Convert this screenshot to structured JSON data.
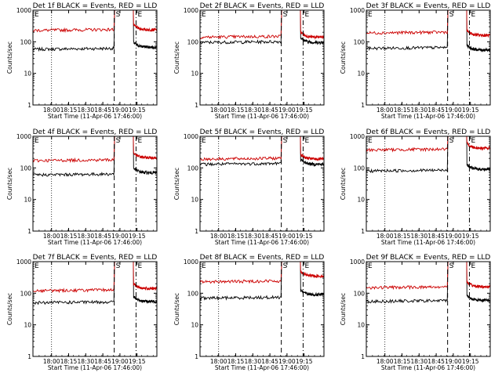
{
  "chart_data": [
    {
      "type": "line",
      "title": "Det 1f BLACK = Events, RED = LLD",
      "xlabel": "Start Time (11-Apr-06 17:46:00)",
      "ylabel": "Counts/sec",
      "yscale": "log",
      "ylim": [
        1,
        1000
      ],
      "yticks": [
        "1",
        "10",
        "100",
        "1000"
      ],
      "xticks": [
        "18:00",
        "18:15",
        "18:30",
        "18:45",
        "19:00",
        "19:15"
      ],
      "markers": {
        "start": "S",
        "end": "E"
      },
      "series": [
        {
          "name": "Events",
          "color": "#000000",
          "base": 58,
          "after": 68
        },
        {
          "name": "LLD",
          "color": "#cc0000",
          "base": 230,
          "after": 240
        }
      ]
    },
    {
      "type": "line",
      "title": "Det 2f BLACK = Events, RED = LLD",
      "xlabel": "Start Time (11-Apr-06 17:46:00)",
      "ylabel": "Counts/sec",
      "yscale": "log",
      "ylim": [
        1,
        1000
      ],
      "yticks": [
        "1",
        "10",
        "100",
        "1000"
      ],
      "xticks": [
        "18:00",
        "18:15",
        "18:30",
        "18:45",
        "19:00",
        "19:15"
      ],
      "markers": {
        "start": "S",
        "end": "E"
      },
      "series": [
        {
          "name": "Events",
          "color": "#000000",
          "base": 95,
          "after": 95
        },
        {
          "name": "LLD",
          "color": "#cc0000",
          "base": 140,
          "after": 140
        }
      ]
    },
    {
      "type": "line",
      "title": "Det 3f BLACK = Events, RED = LLD",
      "xlabel": "Start Time (11-Apr-06 17:46:00)",
      "ylabel": "Counts/sec",
      "yscale": "log",
      "ylim": [
        1,
        1000
      ],
      "yticks": [
        "1",
        "10",
        "100",
        "1000"
      ],
      "xticks": [
        "18:00",
        "18:15",
        "18:30",
        "18:45",
        "19:00",
        "19:15"
      ],
      "markers": {
        "start": "S",
        "end": "E"
      },
      "series": [
        {
          "name": "Events",
          "color": "#000000",
          "base": 62,
          "after": 55
        },
        {
          "name": "LLD",
          "color": "#cc0000",
          "base": 190,
          "after": 160
        }
      ]
    },
    {
      "type": "line",
      "title": "Det 4f BLACK = Events, RED = LLD",
      "xlabel": "Start Time (11-Apr-06 17:46:00)",
      "ylabel": "Counts/sec",
      "yscale": "log",
      "ylim": [
        1,
        1000
      ],
      "yticks": [
        "1",
        "10",
        "100",
        "1000"
      ],
      "xticks": [
        "18:00",
        "18:15",
        "18:30",
        "18:45",
        "19:00",
        "19:15"
      ],
      "markers": {
        "start": "S",
        "end": "E"
      },
      "series": [
        {
          "name": "Events",
          "color": "#000000",
          "base": 60,
          "after": 70
        },
        {
          "name": "LLD",
          "color": "#cc0000",
          "base": 170,
          "after": 210
        }
      ]
    },
    {
      "type": "line",
      "title": "Det 5f BLACK = Events, RED = LLD",
      "xlabel": "Start Time (11-Apr-06 17:46:00)",
      "ylabel": "Counts/sec",
      "yscale": "log",
      "ylim": [
        1,
        1000
      ],
      "yticks": [
        "1",
        "10",
        "100",
        "1000"
      ],
      "xticks": [
        "18:00",
        "18:15",
        "18:30",
        "18:45",
        "19:00",
        "19:15"
      ],
      "markers": {
        "start": "S",
        "end": "E"
      },
      "series": [
        {
          "name": "Events",
          "color": "#000000",
          "base": 130,
          "after": 130
        },
        {
          "name": "LLD",
          "color": "#cc0000",
          "base": 190,
          "after": 190
        }
      ]
    },
    {
      "type": "line",
      "title": "Det 6f BLACK = Events, RED = LLD",
      "xlabel": "Start Time (11-Apr-06 17:46:00)",
      "ylabel": "Counts/sec",
      "yscale": "log",
      "ylim": [
        1,
        1000
      ],
      "yticks": [
        "1",
        "10",
        "100",
        "1000"
      ],
      "xticks": [
        "18:00",
        "18:15",
        "18:30",
        "18:45",
        "19:00",
        "19:15"
      ],
      "markers": {
        "start": "S",
        "end": "E"
      },
      "series": [
        {
          "name": "Events",
          "color": "#000000",
          "base": 80,
          "after": 90
        },
        {
          "name": "LLD",
          "color": "#cc0000",
          "base": 370,
          "after": 420
        }
      ]
    },
    {
      "type": "line",
      "title": "Det 7f BLACK = Events, RED = LLD",
      "xlabel": "Start Time (11-Apr-06 17:46:00)",
      "ylabel": "Counts/sec",
      "yscale": "log",
      "ylim": [
        1,
        1000
      ],
      "yticks": [
        "1",
        "10",
        "100",
        "1000"
      ],
      "xticks": [
        "18:00",
        "18:15",
        "18:30",
        "18:45",
        "19:00",
        "19:15"
      ],
      "markers": {
        "start": "S",
        "end": "E"
      },
      "series": [
        {
          "name": "Events",
          "color": "#000000",
          "base": 50,
          "after": 55
        },
        {
          "name": "LLD",
          "color": "#cc0000",
          "base": 120,
          "after": 140
        }
      ]
    },
    {
      "type": "line",
      "title": "Det 8f BLACK = Events, RED = LLD",
      "xlabel": "Start Time (11-Apr-06 17:46:00)",
      "ylabel": "Counts/sec",
      "yscale": "log",
      "ylim": [
        1,
        1000
      ],
      "yticks": [
        "1",
        "10",
        "100",
        "1000"
      ],
      "xticks": [
        "18:00",
        "18:15",
        "18:30",
        "18:45",
        "19:00",
        "19:15"
      ],
      "markers": {
        "start": "S",
        "end": "E"
      },
      "series": [
        {
          "name": "Events",
          "color": "#000000",
          "base": 70,
          "after": 90
        },
        {
          "name": "LLD",
          "color": "#cc0000",
          "base": 230,
          "after": 350
        }
      ]
    },
    {
      "type": "line",
      "title": "Det 9f BLACK = Events, RED = LLD",
      "xlabel": "Start Time (11-Apr-06 17:46:00)",
      "ylabel": "Counts/sec",
      "yscale": "log",
      "ylim": [
        1,
        1000
      ],
      "yticks": [
        "1",
        "10",
        "100",
        "1000"
      ],
      "xticks": [
        "18:00",
        "18:15",
        "18:30",
        "18:45",
        "19:00",
        "19:15"
      ],
      "markers": {
        "start": "S",
        "end": "E"
      },
      "series": [
        {
          "name": "Events",
          "color": "#000000",
          "base": 55,
          "after": 60
        },
        {
          "name": "LLD",
          "color": "#cc0000",
          "base": 150,
          "after": 160
        }
      ]
    }
  ]
}
